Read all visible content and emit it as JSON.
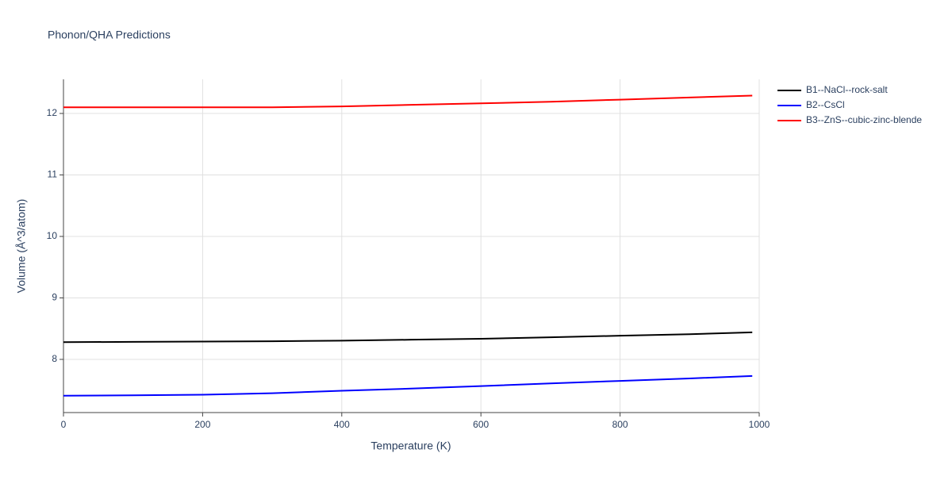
{
  "chart_data": {
    "type": "line",
    "title": "Phonon/QHA Predictions",
    "x_label": "Temperature (K)",
    "y_label": "Volume (Å^3/atom)",
    "x": [
      0,
      100,
      200,
      300,
      400,
      500,
      600,
      700,
      800,
      900,
      990
    ],
    "series": [
      {
        "name": "B1--NaCl--rock-salt",
        "color": "#000000",
        "values": [
          8.28,
          8.285,
          8.29,
          8.295,
          8.305,
          8.32,
          8.335,
          8.36,
          8.385,
          8.41,
          8.44
        ]
      },
      {
        "name": "B2--CsCl",
        "color": "#0000ff",
        "values": [
          7.41,
          7.415,
          7.425,
          7.45,
          7.49,
          7.525,
          7.565,
          7.61,
          7.65,
          7.69,
          7.73
        ]
      },
      {
        "name": "B3--ZnS--cubic-zinc-blende",
        "color": "#ff0000",
        "values": [
          12.1,
          12.1,
          12.1,
          12.1,
          12.115,
          12.14,
          12.165,
          12.19,
          12.225,
          12.26,
          12.29
        ]
      }
    ],
    "xlim": [
      0,
      1000
    ],
    "xticks": [
      0,
      200,
      400,
      600,
      800,
      1000
    ],
    "ylim": [
      7.135,
      12.555
    ],
    "yticks": [
      8,
      9,
      10,
      11,
      12
    ],
    "grid": true,
    "legend": "top-right"
  }
}
